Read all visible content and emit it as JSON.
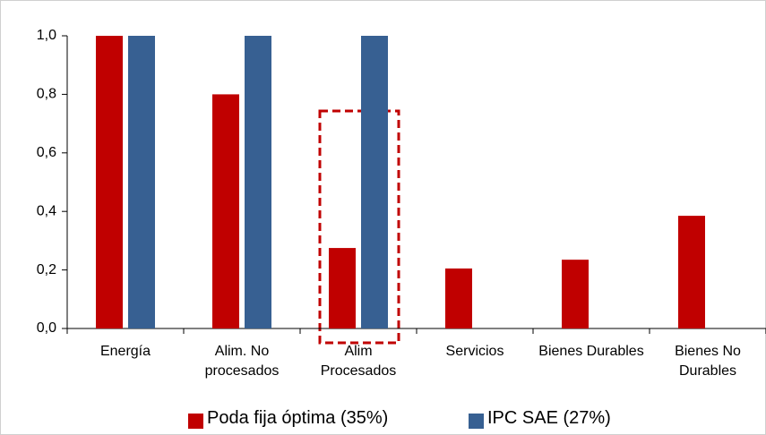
{
  "chart_data": {
    "type": "bar",
    "categories": [
      "Energía",
      "Alim. No procesados",
      "Alim Procesados",
      "Servicios",
      "Bienes Durables",
      "Bienes No Durables"
    ],
    "series": [
      {
        "name": "Poda fija óptima (35%)",
        "color": "#c00000",
        "values": [
          1.0,
          0.8,
          0.275,
          0.205,
          0.235,
          0.385
        ]
      },
      {
        "name": "IPC SAE (27%)",
        "color": "#376092",
        "values": [
          1.0,
          1.0,
          1.0,
          null,
          null,
          null
        ]
      }
    ],
    "ylim": [
      0,
      1
    ],
    "yticks": [
      {
        "value": 0,
        "label": "0,0"
      },
      {
        "value": 0.2,
        "label": "0,2"
      },
      {
        "value": 0.4,
        "label": "0,4"
      },
      {
        "value": 0.6,
        "label": "0,6"
      },
      {
        "value": 0.8,
        "label": "0,8"
      },
      {
        "value": 1,
        "label": "1,0"
      }
    ],
    "grid": false,
    "legend": "bottom"
  }
}
